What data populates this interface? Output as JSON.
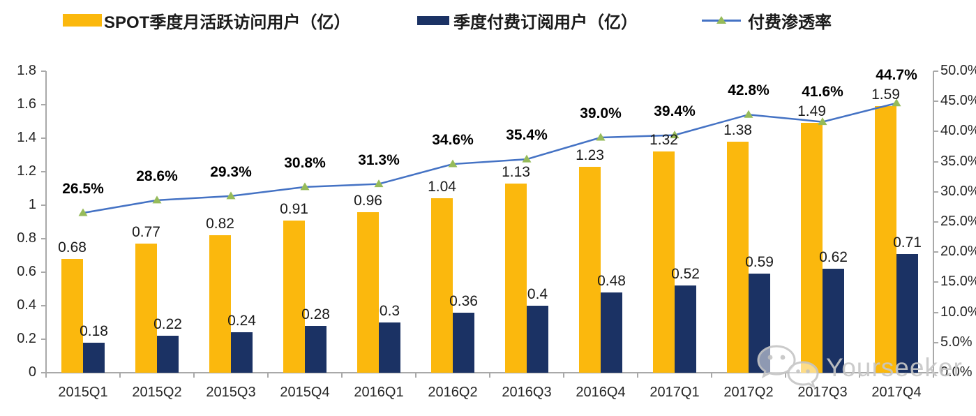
{
  "legend": [
    {
      "label": "SPOT季度月活跃访问用户（亿）",
      "type": "bar",
      "color": "#fbb80d"
    },
    {
      "label": "季度付费订阅用户（亿）",
      "type": "bar",
      "color": "#1b3264"
    },
    {
      "label": "付费渗透率",
      "type": "line",
      "color": "#4472c4",
      "marker": "triangle",
      "marker_color": "#96bb5a"
    }
  ],
  "chart_data": {
    "type": "bar+line",
    "categories": [
      "2015Q1",
      "2015Q2",
      "2015Q3",
      "2015Q4",
      "2016Q1",
      "2016Q2",
      "2016Q3",
      "2016Q4",
      "2017Q1",
      "2017Q2",
      "2017Q3",
      "2017Q4"
    ],
    "series": [
      {
        "name": "SPOT季度月活跃访问用户（亿）",
        "type": "bar",
        "axis": "left",
        "color": "#fbb80d",
        "values": [
          0.68,
          0.77,
          0.82,
          0.91,
          0.96,
          1.04,
          1.13,
          1.23,
          1.32,
          1.38,
          1.49,
          1.59
        ],
        "labels": [
          "0.68",
          "0.77",
          "0.82",
          "0.91",
          "0.96",
          "1.04",
          "1.13",
          "1.23",
          "1.32",
          "1.38",
          "1.49",
          "1.59"
        ]
      },
      {
        "name": "季度付费订阅用户（亿）",
        "type": "bar",
        "axis": "left",
        "color": "#1b3264",
        "values": [
          0.18,
          0.22,
          0.24,
          0.28,
          0.3,
          0.36,
          0.4,
          0.48,
          0.52,
          0.59,
          0.62,
          0.71
        ],
        "labels": [
          "0.18",
          "0.22",
          "0.24",
          "0.28",
          "0.3",
          "0.36",
          "0.4",
          "0.48",
          "0.52",
          "0.59",
          "0.62",
          "0.71"
        ]
      },
      {
        "name": "付费渗透率",
        "type": "line",
        "axis": "right",
        "color": "#4472c4",
        "marker": "triangle",
        "marker_color": "#96bb5a",
        "values": [
          26.5,
          28.6,
          29.3,
          30.8,
          31.3,
          34.6,
          35.4,
          39.0,
          39.4,
          42.8,
          41.6,
          44.7
        ],
        "labels": [
          "26.5%",
          "28.6%",
          "29.3%",
          "30.8%",
          "31.3%",
          "34.6%",
          "35.4%",
          "39.0%",
          "39.4%",
          "42.8%",
          "41.6%",
          "44.7%"
        ]
      }
    ],
    "left_axis": {
      "min": 0,
      "max": 1.8,
      "step": 0.2,
      "ticks": [
        "0",
        "0.2",
        "0.4",
        "0.6",
        "0.8",
        "1",
        "1.2",
        "1.4",
        "1.6",
        "1.8"
      ]
    },
    "right_axis": {
      "min": 0,
      "max": 50,
      "step": 5,
      "ticks": [
        "0.0%",
        "5.0%",
        "10.0%",
        "15.0%",
        "20.0%",
        "25.0%",
        "30.0%",
        "35.0%",
        "40.0%",
        "45.0%",
        "50.0%"
      ]
    },
    "grid": false,
    "legend_position": "top",
    "title": ""
  },
  "watermark": {
    "text": "Yourseeker",
    "icon": "wechat-icon"
  },
  "colors": {
    "bar_mau": "#fbb80d",
    "bar_subs": "#1b3264",
    "line": "#4472c4",
    "marker": "#96bb5a",
    "axis": "#a9a9a9",
    "watermark": "#c7c7c7"
  }
}
